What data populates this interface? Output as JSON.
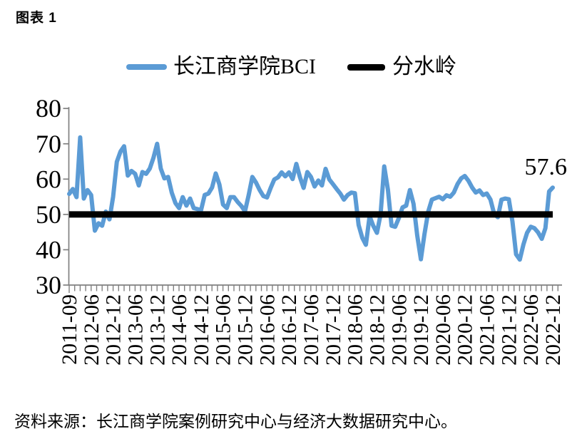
{
  "page": {
    "title": "图表 1",
    "source": "资料来源：长江商学院案例研究中心与经济大数据研究中心。"
  },
  "legend": {
    "items": [
      {
        "label": "长江商学院BCI",
        "color": "#5B9BD5"
      },
      {
        "label": "分水岭",
        "color": "#000000"
      }
    ]
  },
  "chart_data": {
    "type": "line",
    "title": "图表 1",
    "xlabel": "",
    "ylabel": "",
    "ylim": [
      30,
      80
    ],
    "y_ticks": [
      30,
      40,
      50,
      60,
      70,
      80
    ],
    "grid": false,
    "legend_position": "top",
    "axis_color": "#808080",
    "x_labels": [
      "2011-09",
      "2012-06",
      "2012-12",
      "2013-06",
      "2013-12",
      "2014-06",
      "2014-12",
      "2015-06",
      "2015-12",
      "2016-06",
      "2016-12",
      "2017-06",
      "2017-12",
      "2018-06",
      "2018-12",
      "2019-06",
      "2019-12",
      "2020-06",
      "2020-12",
      "2021-06",
      "2021-12",
      "2022-06",
      "2022-12"
    ],
    "points_per_label_interval": 6,
    "series": [
      {
        "name": "长江商学院BCI",
        "color": "#5B9BD5",
        "values": [
          55.8,
          57.2,
          54.9,
          71.8,
          54.5,
          56.9,
          55.5,
          45.4,
          47.5,
          46.8,
          50.8,
          48.6,
          55.0,
          64.9,
          67.8,
          69.3,
          61.0,
          62.3,
          61.5,
          58.2,
          62.0,
          61.5,
          63.0,
          66.0,
          70.0,
          63.0,
          60.2,
          60.6,
          56.2,
          53.2,
          51.8,
          54.9,
          52.5,
          54.5,
          51.8,
          51.5,
          51.2,
          55.5,
          55.9,
          57.6,
          61.6,
          58.5,
          52.8,
          51.8,
          54.9,
          54.9,
          53.5,
          52.4,
          50.9,
          55.5,
          60.6,
          59.0,
          56.9,
          55.2,
          54.8,
          57.5,
          59.9,
          60.5,
          61.9,
          60.8,
          61.9,
          60.0,
          64.3,
          60.5,
          57.5,
          62.0,
          60.6,
          57.9,
          59.6,
          58.2,
          62.9,
          59.9,
          58.6,
          57.2,
          55.9,
          54.2,
          55.5,
          56.2,
          56.0,
          47.0,
          43.4,
          41.4,
          49.5,
          46.8,
          44.8,
          50.0,
          63.6,
          57.0,
          46.8,
          46.5,
          49.0,
          52.0,
          52.5,
          56.9,
          53.0,
          44.0,
          37.3,
          44.5,
          50.8,
          54.2,
          54.6,
          55.0,
          54.3,
          55.4,
          55.0,
          56.2,
          58.6,
          60.2,
          60.9,
          59.5,
          57.6,
          56.2,
          56.8,
          55.5,
          55.9,
          54.2,
          50.2,
          49.2,
          54.2,
          54.5,
          54.3,
          48.0,
          38.7,
          37.2,
          41.5,
          44.8,
          46.5,
          46.1,
          44.9,
          43.1,
          46.1,
          56.5,
          57.6
        ]
      },
      {
        "name": "分水岭",
        "color": "#000000",
        "type": "constant",
        "value": 50
      }
    ],
    "annotation_label": "57.6",
    "last_value": 57.6
  }
}
